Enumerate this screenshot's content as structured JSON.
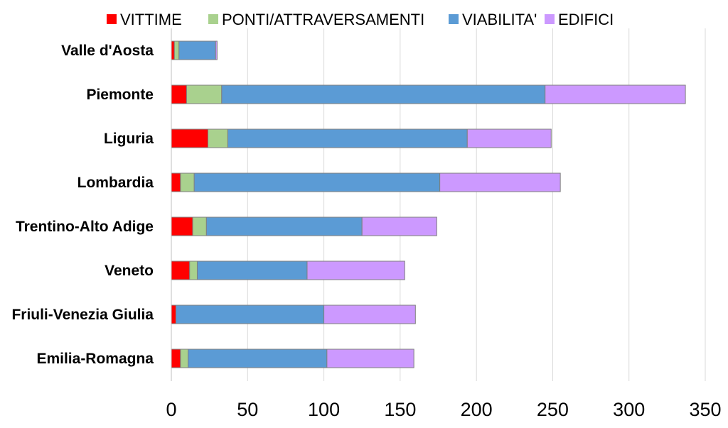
{
  "chart_data": {
    "type": "bar",
    "orientation": "horizontal",
    "stacked": true,
    "title": "",
    "xlabel": "",
    "ylabel": "",
    "xlim": [
      0,
      350
    ],
    "xticks": [
      0,
      50,
      100,
      150,
      200,
      250,
      300,
      350
    ],
    "grid": "vertical",
    "legend_position": "top",
    "categories": [
      "Valle d'Aosta",
      "Piemonte",
      "Liguria",
      "Lombardia",
      "Trentino-Alto Adige",
      "Veneto",
      "Friuli-Venezia Giulia",
      "Emilia-Romagna"
    ],
    "series": [
      {
        "name": "VITTIME",
        "color": "#ff0000",
        "values": [
          2,
          10,
          24,
          6,
          14,
          12,
          3,
          6
        ]
      },
      {
        "name": "PONTI/ATTRAVERSAMENTI",
        "color": "#a9d18e",
        "values": [
          3,
          23,
          13,
          9,
          9,
          5,
          0,
          5
        ]
      },
      {
        "name": "VIABILITA'",
        "color": "#5b9bd5",
        "values": [
          24,
          212,
          157,
          161,
          102,
          72,
          97,
          91
        ]
      },
      {
        "name": "EDIFICI",
        "color": "#cc99ff",
        "values": [
          1,
          92,
          55,
          79,
          49,
          64,
          60,
          57
        ]
      }
    ]
  }
}
